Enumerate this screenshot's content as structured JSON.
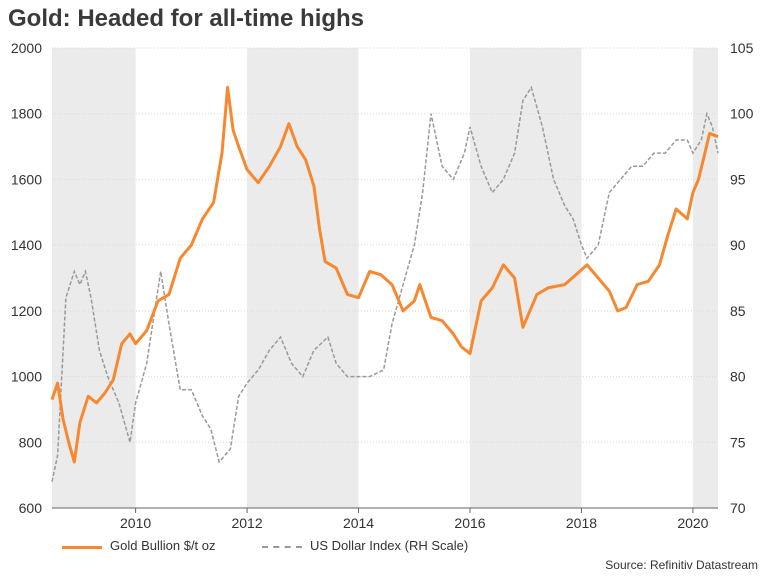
{
  "chart_data": {
    "type": "line",
    "title": "Gold: Headed for all-time highs",
    "source": "Source: Refinitiv Datastream",
    "x_ticks": [
      "2010",
      "2012",
      "2014",
      "2016",
      "2018",
      "2020"
    ],
    "x_tick_years": [
      2010,
      2012,
      2014,
      2016,
      2018,
      2020
    ],
    "x_range": [
      2008.5,
      2020.45
    ],
    "shaded_periods": [
      [
        2008.5,
        2010
      ],
      [
        2012,
        2014
      ],
      [
        2016,
        2018
      ],
      [
        2020,
        2020.45
      ]
    ],
    "left_axis": {
      "range": [
        600,
        2000
      ],
      "ticks": [
        600,
        800,
        1000,
        1200,
        1400,
        1600,
        1800,
        2000
      ]
    },
    "right_axis": {
      "range": [
        70,
        105
      ],
      "ticks": [
        70,
        75,
        80,
        85,
        90,
        95,
        100,
        105
      ]
    },
    "series": [
      {
        "name": "Gold Bullion $/t oz",
        "axis": "left",
        "color": "#f7882f",
        "style": "solid",
        "x": [
          2008.5,
          2008.6,
          2008.7,
          2008.8,
          2008.9,
          2009.0,
          2009.15,
          2009.3,
          2009.45,
          2009.6,
          2009.75,
          2009.9,
          2010.0,
          2010.2,
          2010.4,
          2010.6,
          2010.8,
          2011.0,
          2011.2,
          2011.4,
          2011.55,
          2011.65,
          2011.75,
          2011.85,
          2012.0,
          2012.2,
          2012.4,
          2012.6,
          2012.75,
          2012.9,
          2013.05,
          2013.2,
          2013.3,
          2013.4,
          2013.6,
          2013.8,
          2014.0,
          2014.2,
          2014.4,
          2014.6,
          2014.8,
          2015.0,
          2015.1,
          2015.3,
          2015.5,
          2015.7,
          2015.85,
          2016.0,
          2016.2,
          2016.4,
          2016.6,
          2016.8,
          2016.95,
          2017.2,
          2017.4,
          2017.7,
          2017.9,
          2018.1,
          2018.3,
          2018.5,
          2018.65,
          2018.8,
          2019.0,
          2019.2,
          2019.4,
          2019.55,
          2019.7,
          2019.9,
          2020.0,
          2020.1,
          2020.2,
          2020.3,
          2020.45
        ],
        "values": [
          930,
          980,
          870,
          800,
          740,
          860,
          940,
          920,
          950,
          990,
          1100,
          1130,
          1100,
          1140,
          1230,
          1250,
          1360,
          1400,
          1480,
          1530,
          1680,
          1880,
          1750,
          1700,
          1630,
          1590,
          1640,
          1700,
          1770,
          1700,
          1660,
          1580,
          1450,
          1350,
          1330,
          1250,
          1240,
          1320,
          1310,
          1280,
          1200,
          1230,
          1280,
          1180,
          1170,
          1130,
          1090,
          1070,
          1230,
          1270,
          1340,
          1300,
          1150,
          1250,
          1270,
          1280,
          1310,
          1340,
          1300,
          1260,
          1200,
          1210,
          1280,
          1290,
          1340,
          1430,
          1510,
          1480,
          1560,
          1600,
          1670,
          1740,
          1730
        ]
      },
      {
        "name": "US Dollar Index (RH Scale)",
        "axis": "right",
        "color": "#999999",
        "style": "dashed",
        "x": [
          2008.5,
          2008.6,
          2008.75,
          2008.9,
          2009.0,
          2009.1,
          2009.2,
          2009.35,
          2009.5,
          2009.7,
          2009.9,
          2010.0,
          2010.2,
          2010.45,
          2010.6,
          2010.8,
          2011.0,
          2011.2,
          2011.35,
          2011.5,
          2011.7,
          2011.85,
          2012.0,
          2012.2,
          2012.4,
          2012.6,
          2012.8,
          2013.0,
          2013.2,
          2013.45,
          2013.6,
          2013.8,
          2014.0,
          2014.2,
          2014.45,
          2014.6,
          2014.8,
          2015.0,
          2015.15,
          2015.3,
          2015.5,
          2015.7,
          2015.9,
          2016.0,
          2016.2,
          2016.4,
          2016.6,
          2016.8,
          2016.95,
          2017.1,
          2017.3,
          2017.5,
          2017.7,
          2017.85,
          2018.0,
          2018.1,
          2018.3,
          2018.5,
          2018.7,
          2018.9,
          2019.1,
          2019.3,
          2019.5,
          2019.7,
          2019.9,
          2020.0,
          2020.15,
          2020.25,
          2020.35,
          2020.45
        ],
        "values": [
          72,
          74,
          86,
          88,
          87,
          88,
          86,
          82,
          80,
          78,
          75,
          78,
          81,
          88,
          84,
          79,
          79,
          77,
          76,
          73.5,
          74.5,
          78.5,
          79.5,
          80.5,
          82,
          83,
          81,
          80,
          82,
          83,
          81,
          80,
          80,
          80,
          80.5,
          84,
          87,
          90,
          94,
          100,
          96,
          95,
          97,
          99,
          96,
          94,
          95,
          97,
          101,
          102,
          99,
          95,
          93,
          92,
          90,
          89,
          90,
          94,
          95,
          96,
          96,
          97,
          97,
          98,
          98,
          97,
          98,
          100,
          99,
          97
        ]
      }
    ],
    "legend": [
      {
        "label": "Gold Bullion $/t oz"
      },
      {
        "label": "US Dollar Index (RH Scale)"
      }
    ]
  }
}
